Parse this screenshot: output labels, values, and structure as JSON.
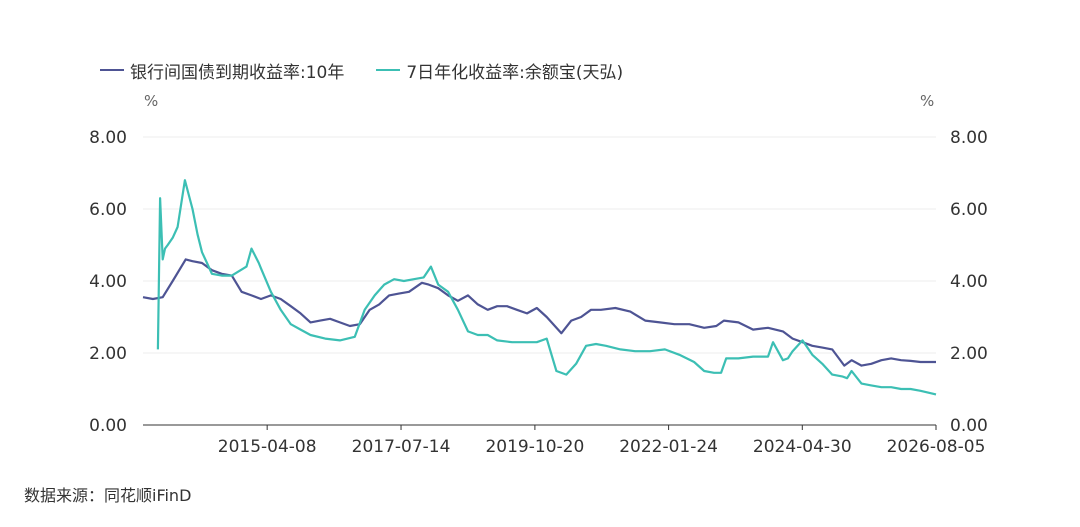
{
  "chart_data": {
    "type": "line",
    "title": "",
    "unit_left": "%",
    "unit_right": "%",
    "ylim": [
      0,
      8
    ],
    "yticks": [
      "0.00",
      "2.00",
      "4.00",
      "6.00",
      "8.00"
    ],
    "xlim": [
      "2013-03-01",
      "2026-08-05"
    ],
    "xticks": [
      "2015-04-08",
      "2017-07-14",
      "2019-10-20",
      "2022-01-24",
      "2024-04-30",
      "2026-08-05"
    ],
    "grid": true,
    "legend_position": "top-left",
    "series": [
      {
        "name": "银行间国债到期收益率:10年",
        "color": "#4e5494",
        "x": [
          "2013-03-01",
          "2013-05-01",
          "2013-07-01",
          "2013-09-01",
          "2013-11-20",
          "2014-01-01",
          "2014-03-01",
          "2014-05-01",
          "2014-07-01",
          "2014-09-01",
          "2014-11-01",
          "2015-01-01",
          "2015-03-01",
          "2015-05-01",
          "2015-07-01",
          "2015-09-01",
          "2015-11-01",
          "2016-01-01",
          "2016-03-01",
          "2016-05-01",
          "2016-07-01",
          "2016-09-01",
          "2016-11-01",
          "2017-01-01",
          "2017-03-01",
          "2017-05-01",
          "2017-07-01",
          "2017-09-01",
          "2017-11-20",
          "2018-01-01",
          "2018-03-01",
          "2018-05-01",
          "2018-07-01",
          "2018-09-01",
          "2018-11-01",
          "2019-01-01",
          "2019-03-01",
          "2019-05-01",
          "2019-07-01",
          "2019-09-01",
          "2019-11-01",
          "2020-01-01",
          "2020-04-01",
          "2020-06-01",
          "2020-08-01",
          "2020-10-01",
          "2020-12-01",
          "2021-03-01",
          "2021-06-01",
          "2021-09-01",
          "2021-12-01",
          "2022-03-01",
          "2022-06-01",
          "2022-09-01",
          "2022-11-15",
          "2023-01-01",
          "2023-04-01",
          "2023-07-01",
          "2023-10-01",
          "2024-01-01",
          "2024-03-01",
          "2024-05-01",
          "2024-07-01",
          "2024-09-01",
          "2024-11-01",
          "2025-01-15",
          "2025-03-01",
          "2025-05-01",
          "2025-07-01",
          "2025-09-01",
          "2025-11-01",
          "2026-01-01",
          "2026-03-01",
          "2026-05-01",
          "2026-08-05"
        ],
        "values": [
          3.55,
          3.5,
          3.55,
          4.0,
          4.6,
          4.55,
          4.5,
          4.3,
          4.2,
          4.15,
          3.7,
          3.6,
          3.5,
          3.6,
          3.5,
          3.3,
          3.1,
          2.85,
          2.9,
          2.95,
          2.85,
          2.75,
          2.8,
          3.2,
          3.35,
          3.6,
          3.65,
          3.7,
          3.95,
          3.9,
          3.8,
          3.6,
          3.45,
          3.6,
          3.35,
          3.2,
          3.3,
          3.3,
          3.2,
          3.1,
          3.25,
          3.0,
          2.55,
          2.9,
          3.0,
          3.2,
          3.2,
          3.25,
          3.15,
          2.9,
          2.85,
          2.8,
          2.8,
          2.7,
          2.75,
          2.9,
          2.85,
          2.65,
          2.7,
          2.6,
          2.4,
          2.3,
          2.2,
          2.15,
          2.1,
          1.65,
          1.8,
          1.65,
          1.7,
          1.8,
          1.85,
          1.8,
          1.78,
          1.75,
          1.75
        ]
      },
      {
        "name": "7日年化收益率:余额宝(天弘)",
        "color": "#3cbfb4",
        "x": [
          "2013-06-01",
          "2013-06-15",
          "2013-07-01",
          "2013-07-15",
          "2013-08-01",
          "2013-09-01",
          "2013-10-01",
          "2013-11-15",
          "2014-01-01",
          "2014-02-01",
          "2014-03-01",
          "2014-04-01",
          "2014-05-01",
          "2014-07-01",
          "2014-09-01",
          "2014-12-01",
          "2015-01-01",
          "2015-02-15",
          "2015-03-01",
          "2015-05-01",
          "2015-07-01",
          "2015-09-01",
          "2015-11-01",
          "2016-01-01",
          "2016-04-01",
          "2016-07-01",
          "2016-10-01",
          "2016-12-01",
          "2017-02-01",
          "2017-04-01",
          "2017-06-01",
          "2017-08-01",
          "2017-10-01",
          "2017-12-01",
          "2018-01-15",
          "2018-03-01",
          "2018-05-01",
          "2018-07-01",
          "2018-09-01",
          "2018-11-01",
          "2019-01-01",
          "2019-03-01",
          "2019-06-01",
          "2019-09-01",
          "2019-11-01",
          "2020-01-01",
          "2020-03-01",
          "2020-05-01",
          "2020-07-01",
          "2020-09-01",
          "2020-11-01",
          "2021-01-01",
          "2021-04-01",
          "2021-07-01",
          "2021-10-01",
          "2022-01-01",
          "2022-04-01",
          "2022-07-01",
          "2022-09-01",
          "2022-11-01",
          "2022-12-15",
          "2023-01-15",
          "2023-04-01",
          "2023-07-01",
          "2023-10-01",
          "2023-11-01",
          "2024-01-01",
          "2024-02-01",
          "2024-03-01",
          "2024-05-01",
          "2024-07-01",
          "2024-09-01",
          "2024-11-01",
          "2025-01-01",
          "2025-02-01",
          "2025-03-01",
          "2025-05-01",
          "2025-07-01",
          "2025-09-01",
          "2025-11-01",
          "2026-01-01",
          "2026-03-01",
          "2026-05-01",
          "2026-08-05"
        ],
        "values": [
          2.1,
          6.3,
          4.6,
          4.9,
          5.0,
          5.2,
          5.5,
          6.8,
          6.0,
          5.3,
          4.8,
          4.5,
          4.2,
          4.15,
          4.15,
          4.4,
          4.9,
          4.5,
          4.35,
          3.7,
          3.2,
          2.8,
          2.65,
          2.5,
          2.4,
          2.35,
          2.45,
          3.2,
          3.6,
          3.9,
          4.05,
          4.0,
          4.05,
          4.1,
          4.4,
          3.9,
          3.7,
          3.2,
          2.6,
          2.5,
          2.5,
          2.35,
          2.3,
          2.3,
          2.3,
          2.4,
          1.5,
          1.4,
          1.7,
          2.2,
          2.25,
          2.2,
          2.1,
          2.05,
          2.05,
          2.1,
          1.95,
          1.75,
          1.5,
          1.45,
          1.45,
          1.85,
          1.85,
          1.9,
          1.9,
          2.3,
          1.8,
          1.85,
          2.05,
          2.35,
          1.95,
          1.7,
          1.4,
          1.35,
          1.3,
          1.5,
          1.15,
          1.1,
          1.05,
          1.05,
          1.0,
          1.0,
          0.95,
          0.85
        ]
      }
    ]
  },
  "source_text": "数据来源：同花顺iFinD"
}
